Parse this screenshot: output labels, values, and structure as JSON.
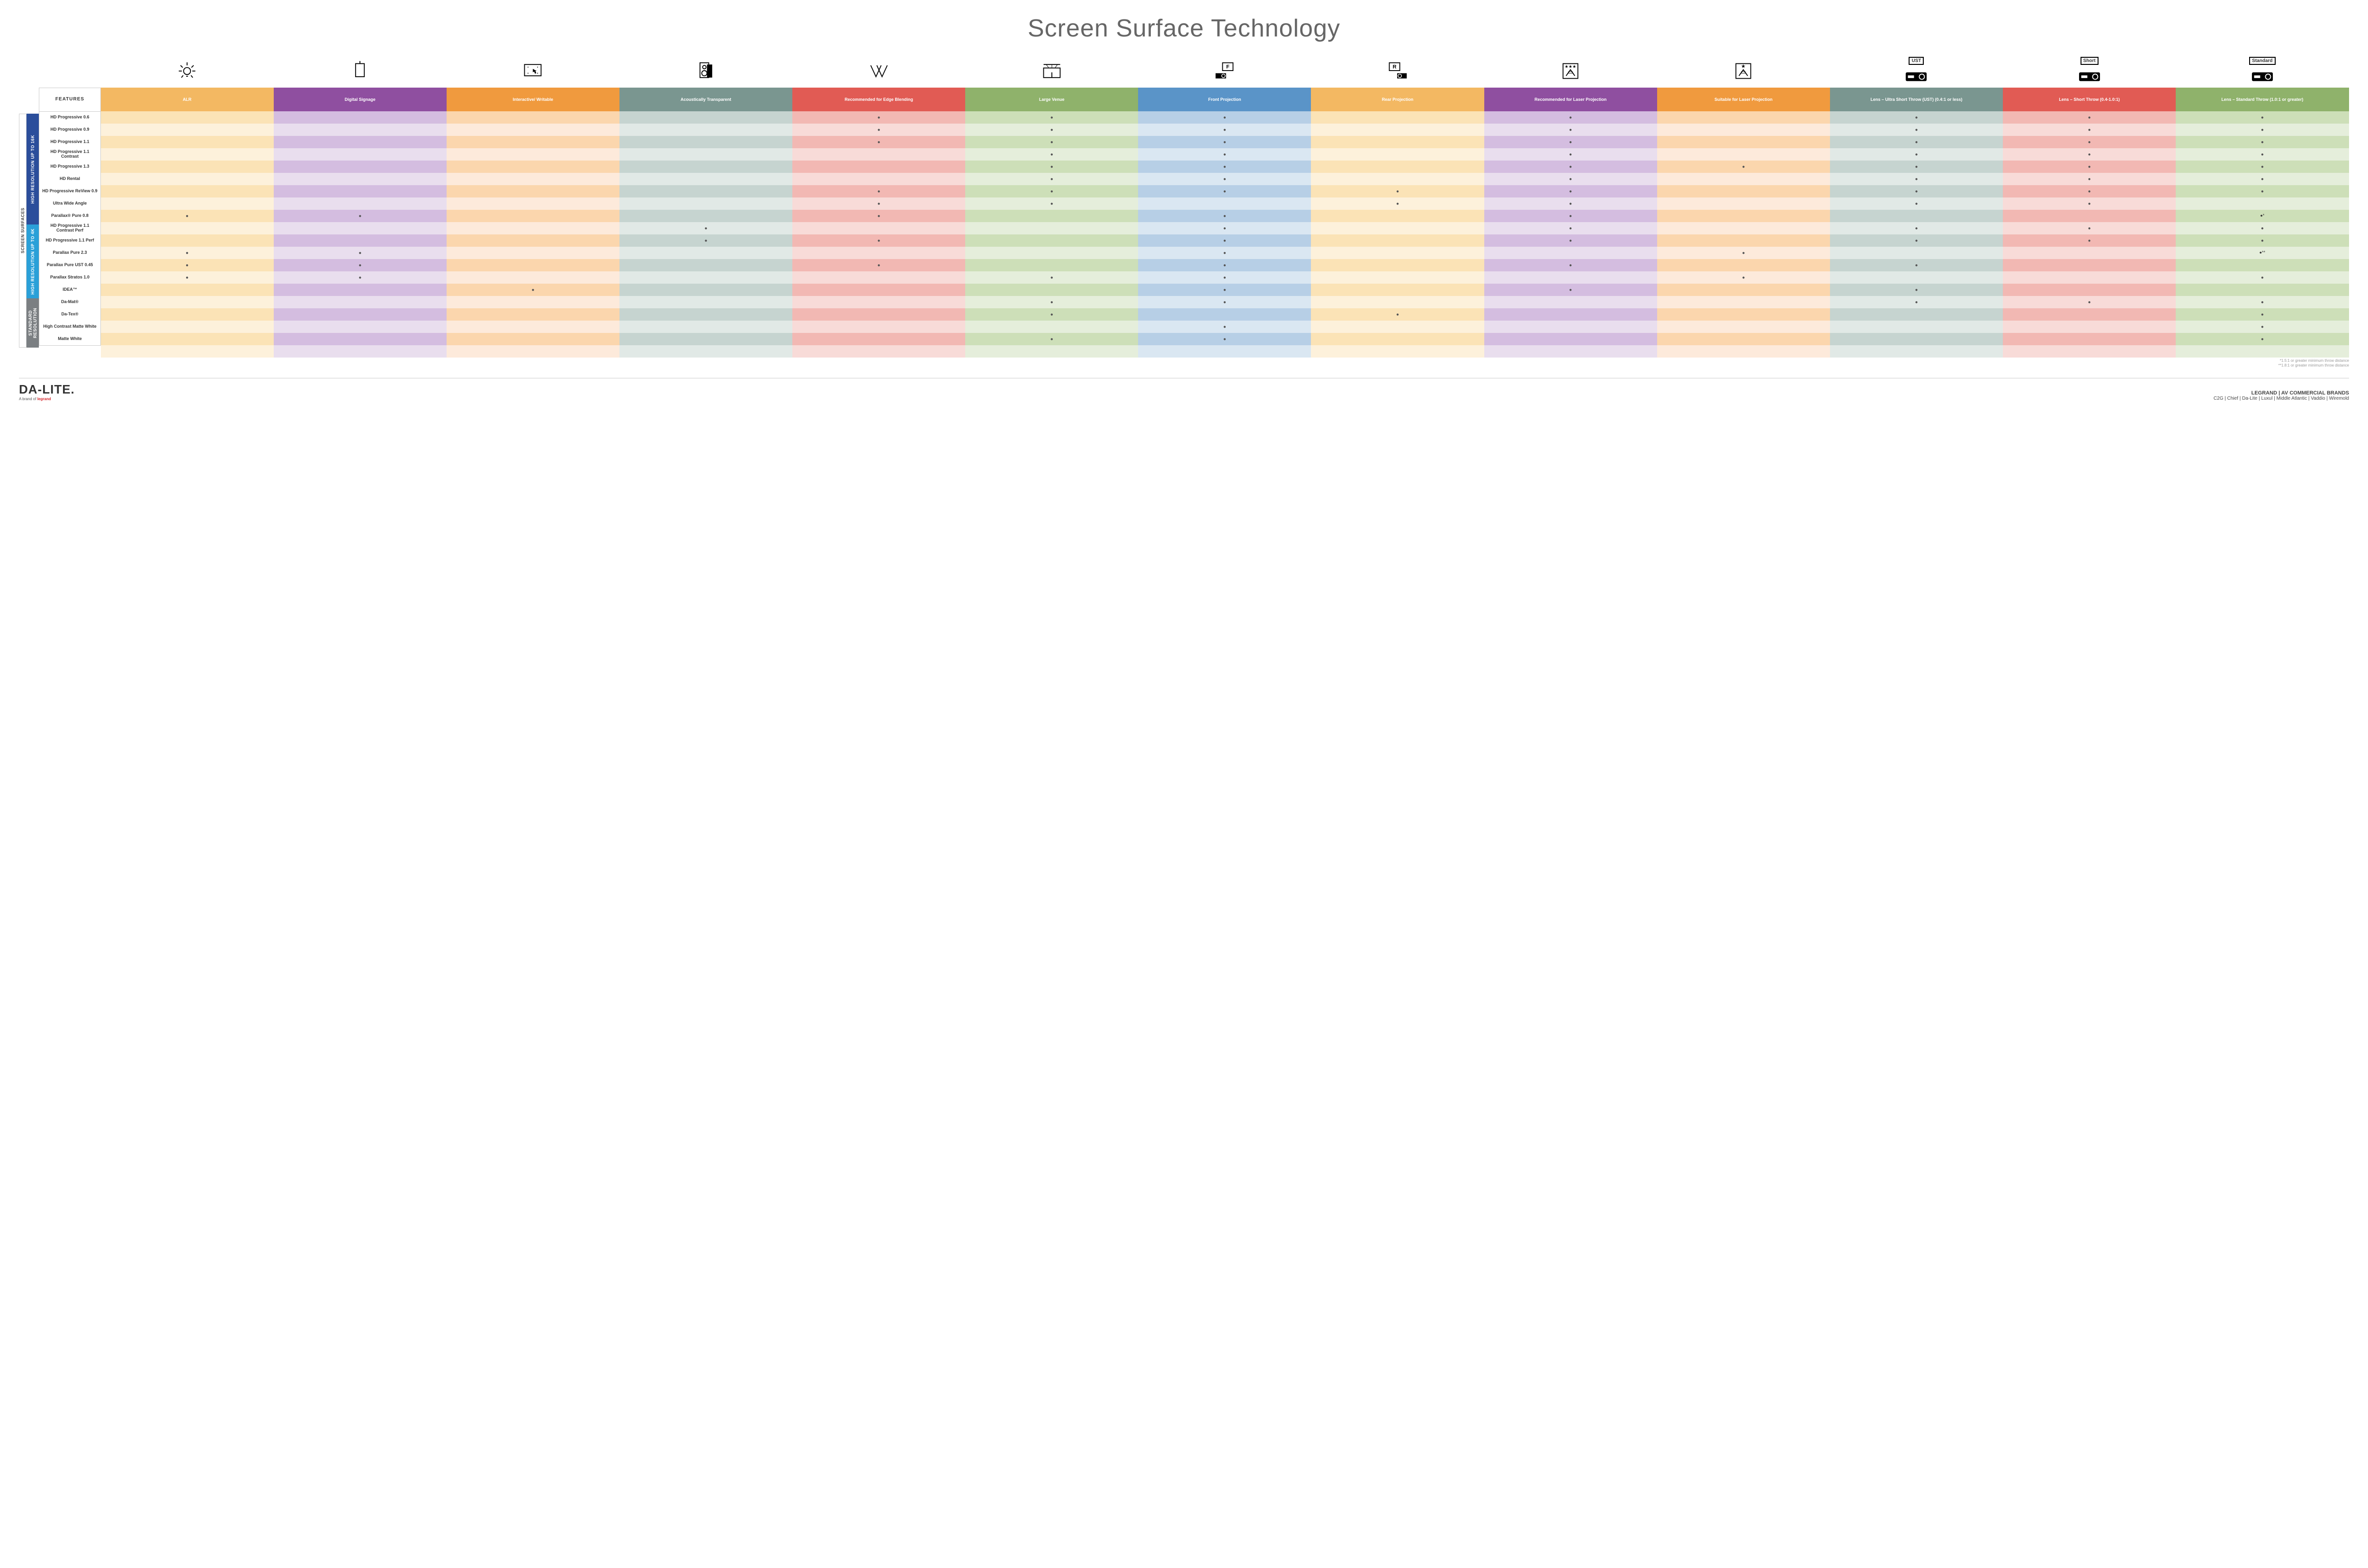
{
  "title": "Screen Surface Technology",
  "colors": {
    "col_bg": [
      "#f3b862",
      "#8f4fa0",
      "#f09a3e",
      "#7a9690",
      "#e15b54",
      "#8fb26b",
      "#5a94c8",
      "#f3b862",
      "#8f4fa0",
      "#f09a3e",
      "#7a9690",
      "#e15b54",
      "#8fb26b"
    ],
    "col_light": [
      "#fbe3b6",
      "#d4bde0",
      "#fbd6ad",
      "#c6d4d0",
      "#f2b8b3",
      "#cddfb8",
      "#b7cfe6",
      "#fbe3b6",
      "#d4bde0",
      "#fbd6ad",
      "#c6d4d0",
      "#f2b8b3",
      "#cddfb8"
    ],
    "col_lighter": [
      "#fdf1db",
      "#e9deee",
      "#fdeadb",
      "#e1e9e6",
      "#f8dbd8",
      "#e5eedb",
      "#daE7f2",
      "#fdf1db",
      "#e9deee",
      "#fdeadb",
      "#e1e9e6",
      "#f8dbd8",
      "#e5eedb"
    ],
    "group_colors": [
      "#2b4e9b",
      "#2aa0d8",
      "#7b7f82"
    ]
  },
  "side_outer": "SCREEN SURFACES",
  "groups": [
    {
      "label": "HIGH RESOLUTION UP TO 16K",
      "rows": 9
    },
    {
      "label": "HIGH RESOLUTION UP TO 4K",
      "rows": 6
    },
    {
      "label": "STANDARD RESOLUTION",
      "rows": 4
    }
  ],
  "features_label": "FEATURES",
  "columns": [
    "ALR",
    "Digital Signage",
    "Interactive/ Writable",
    "Acoustically Transparent",
    "Recommended for Edge Blending",
    "Large Venue",
    "Front Projection",
    "Rear Projection",
    "Recommended for Laser Projection",
    "Suitable for Laser Projection",
    "Lens – Ultra Short Throw (UST) (0.4:1 or less)",
    "Lens – Short Throw (0.4-1.0:1)",
    "Lens – Standard Throw (1.0:1 or greater)"
  ],
  "icon_labels": [
    "UST",
    "Short",
    "Standard"
  ],
  "rows": [
    {
      "label": "HD Progressive 0.6",
      "dots": [
        0,
        0,
        0,
        0,
        1,
        1,
        1,
        0,
        1,
        0,
        1,
        1,
        1
      ]
    },
    {
      "label": "HD Progressive 0.9",
      "dots": [
        0,
        0,
        0,
        0,
        1,
        1,
        1,
        0,
        1,
        0,
        1,
        1,
        1
      ]
    },
    {
      "label": "HD Progressive 1.1",
      "dots": [
        0,
        0,
        0,
        0,
        1,
        1,
        1,
        0,
        1,
        0,
        1,
        1,
        1
      ]
    },
    {
      "label": "HD Progressive 1.1 Contrast",
      "dots": [
        0,
        0,
        0,
        0,
        0,
        1,
        1,
        0,
        1,
        0,
        1,
        1,
        1
      ]
    },
    {
      "label": "HD Progressive 1.3",
      "dots": [
        0,
        0,
        0,
        0,
        0,
        1,
        1,
        0,
        1,
        1,
        1,
        1,
        1
      ]
    },
    {
      "label": "HD Rental",
      "dots": [
        0,
        0,
        0,
        0,
        0,
        1,
        1,
        0,
        1,
        0,
        1,
        1,
        1
      ]
    },
    {
      "label": "HD Progressive ReView 0.9",
      "dots": [
        0,
        0,
        0,
        0,
        1,
        1,
        1,
        1,
        1,
        0,
        1,
        1,
        1
      ]
    },
    {
      "label": "Ultra Wide Angle",
      "dots": [
        0,
        0,
        0,
        0,
        1,
        1,
        0,
        1,
        1,
        0,
        1,
        1,
        0
      ]
    },
    {
      "label": "Parallax® Pure 0.8",
      "dots": [
        1,
        1,
        0,
        0,
        1,
        0,
        1,
        0,
        1,
        0,
        0,
        0,
        1
      ],
      "suffix": "*"
    },
    {
      "label": "HD Progressive 1.1 Contrast Perf",
      "dots": [
        0,
        0,
        0,
        1,
        0,
        0,
        1,
        0,
        1,
        0,
        1,
        1,
        1
      ]
    },
    {
      "label": "HD Progressive 1.1 Perf",
      "dots": [
        0,
        0,
        0,
        1,
        1,
        0,
        1,
        0,
        1,
        0,
        1,
        1,
        1
      ]
    },
    {
      "label": "Parallax Pure 2.3",
      "dots": [
        1,
        1,
        0,
        0,
        0,
        0,
        1,
        0,
        0,
        1,
        0,
        0,
        1
      ],
      "suffix": "**"
    },
    {
      "label": "Parallax Pure UST 0.45",
      "dots": [
        1,
        1,
        0,
        0,
        1,
        0,
        1,
        0,
        1,
        0,
        1,
        0,
        0
      ]
    },
    {
      "label": "Parallax Stratos 1.0",
      "dots": [
        1,
        1,
        0,
        0,
        0,
        1,
        1,
        0,
        0,
        1,
        0,
        0,
        1
      ]
    },
    {
      "label": "IDEA™",
      "dots": [
        0,
        0,
        1,
        0,
        0,
        0,
        1,
        0,
        1,
        0,
        1,
        0,
        0
      ]
    },
    {
      "label": "Da-Mat®",
      "dots": [
        0,
        0,
        0,
        0,
        0,
        1,
        1,
        0,
        0,
        0,
        1,
        1,
        1
      ]
    },
    {
      "label": "Da-Tex®",
      "dots": [
        0,
        0,
        0,
        0,
        0,
        1,
        0,
        1,
        0,
        0,
        0,
        0,
        1
      ]
    },
    {
      "label": "High Contrast Matte White",
      "dots": [
        0,
        0,
        0,
        0,
        0,
        0,
        1,
        0,
        0,
        0,
        0,
        0,
        1
      ]
    },
    {
      "label": "Matte White",
      "dots": [
        0,
        0,
        0,
        0,
        0,
        1,
        1,
        0,
        0,
        0,
        0,
        0,
        1
      ]
    }
  ],
  "footnotes": [
    "*1.5:1 or greater minimum throw distance",
    "**1.8:1 or greater minimum throw distance"
  ],
  "footer": {
    "logo": "DA-LITE.",
    "logo_sub_prefix": "A brand of ",
    "logo_sub_brand": "legrand",
    "right_main": "LEGRAND | AV COMMERCIAL BRANDS",
    "right_sub": "C2G  |  Chief  |  Da-Lite  |  Luxul  |  Middle Atlantic  |  Vaddio  |  Wiremold"
  }
}
